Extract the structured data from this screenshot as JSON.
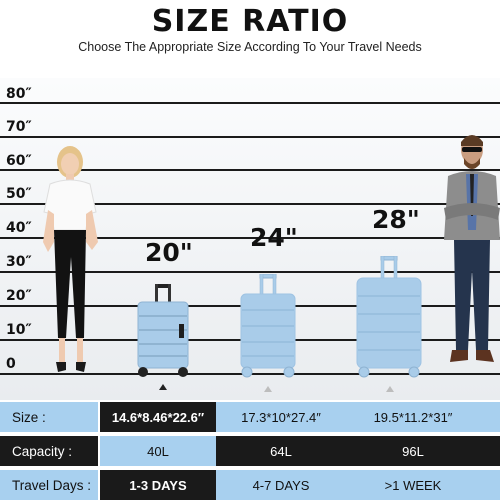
{
  "header": {
    "title": "SIZE RATIO",
    "subtitle": "Choose The Appropriate Size According To Your Travel Needs"
  },
  "scale": {
    "ticks": [
      "80″",
      "70″",
      "60″",
      "50″",
      "40″",
      "30″",
      "20″",
      "10″",
      "0"
    ]
  },
  "sizes": [
    {
      "label": "20\""
    },
    {
      "label": "24\""
    },
    {
      "label": "28\""
    }
  ],
  "table": {
    "rows": [
      {
        "header": "Size :",
        "values": [
          "14.6*8.46*22.6″",
          "17.3*10*27.4″",
          "19.5*11.2*31″"
        ]
      },
      {
        "header": "Capacity :",
        "values": [
          "40L",
          "64L",
          "96L"
        ]
      },
      {
        "header": "Travel Days :",
        "values": [
          "1-3 DAYS",
          "4-7 DAYS",
          ">1 WEEK"
        ]
      }
    ]
  },
  "colors": {
    "suitcase_blue": "#a9cce9",
    "table_blue": "#a8d0ef",
    "table_dark": "#1a1a1a"
  }
}
